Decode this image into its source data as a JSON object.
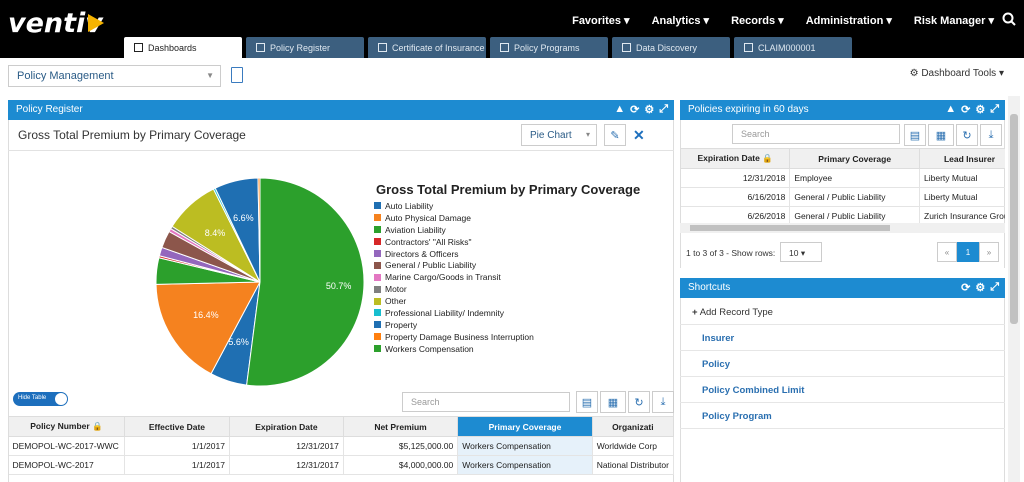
{
  "brand": {
    "logo_text": "ventiv",
    "accent": "#f5b301"
  },
  "topnav": [
    "Favorites ▾",
    "Analytics ▾",
    "Records ▾",
    "Administration ▾",
    "Risk Manager ▾"
  ],
  "tabs": [
    "Dashboards",
    "Policy Register",
    "Certificate of Insurance",
    "Policy Programs",
    "Data Discovery",
    "CLAIM000001"
  ],
  "dashboard_select": "Policy Management",
  "dashboard_tools": "Dashboard Tools",
  "policy_register": {
    "title": "Policy Register",
    "chart_label": "Gross Total Premium by Primary Coverage",
    "chart_type_select": "Pie Chart",
    "hide_table": "Hide Table",
    "search_placeholder": "Search",
    "columns": [
      "Policy Number",
      "Effective Date",
      "Expiration Date",
      "Net Premium",
      "Primary Coverage",
      "Organizati"
    ],
    "rows": [
      [
        "DEMOPOL-WC-2017-WWC",
        "1/1/2017",
        "12/31/2017",
        "$5,125,000.00",
        "Workers Compensation",
        "Worldwide Corp"
      ],
      [
        "DEMOPOL-WC-2017",
        "1/1/2017",
        "12/31/2017",
        "$4,000,000.00",
        "Workers Compensation",
        "National Distributor"
      ]
    ]
  },
  "chart_data": {
    "type": "pie",
    "title": "Gross Total Premium by Primary Coverage",
    "legend_position": "right",
    "slices": [
      {
        "name": "Auto Liability",
        "value": 5.6,
        "color": "#1f6fb2"
      },
      {
        "name": "Auto Physical Damage",
        "value": 16.4,
        "color": "#f5821f"
      },
      {
        "name": "Aviation Liability",
        "value": 4.0,
        "color": "#2ca02c"
      },
      {
        "name": "Contractors' \"All Risks\"",
        "value": 0.3,
        "color": "#d62728"
      },
      {
        "name": "Directors & Officers",
        "value": 1.3,
        "color": "#9467bd"
      },
      {
        "name": "General / Public Liability",
        "value": 2.6,
        "color": "#8c564b"
      },
      {
        "name": "Marine Cargo/Goods in Transit",
        "value": 0.5,
        "color": "#e377c2"
      },
      {
        "name": "Motor",
        "value": 0.4,
        "color": "#7f7f7f"
      },
      {
        "name": "Other",
        "value": 8.4,
        "color": "#bcbd22"
      },
      {
        "name": "Professional Liability/ Indemnity",
        "value": 0.3,
        "color": "#17becf"
      },
      {
        "name": "Property",
        "value": 6.6,
        "color": "#1f6fb2"
      },
      {
        "name": "Property Damage Business Interruption",
        "value": 0.3,
        "color": "#ff7f0e"
      },
      {
        "name": "Workers Compensation",
        "value": 50.7,
        "color": "#2ca02c"
      }
    ],
    "labels": {
      "Workers Compensation": "50.7%",
      "Auto Physical Damage": "16.4%",
      "Other": "8.4%",
      "Property": "6.6%",
      "Auto Liability": "5.6%"
    }
  },
  "expiring": {
    "title": "Policies expiring in 60 days",
    "search_placeholder": "Search",
    "columns": [
      "Expiration Date",
      "Primary Coverage",
      "Lead Insurer"
    ],
    "rows": [
      [
        "12/31/2018",
        "Employee",
        "Liberty Mutual"
      ],
      [
        "6/16/2018",
        "General / Public Liability",
        "Liberty Mutual"
      ],
      [
        "6/26/2018",
        "General / Public Liability",
        "Zurich Insurance Group"
      ]
    ],
    "pager_info": "1 to 3 of 3 - Show rows:",
    "rows_per_page": "10",
    "page_prev": "«",
    "page_current": "1",
    "page_next": "»"
  },
  "shortcuts": {
    "title": "Shortcuts",
    "add_record": "Add Record Type",
    "items": [
      "Insurer",
      "Policy",
      "Policy Combined Limit",
      "Policy Program"
    ]
  }
}
